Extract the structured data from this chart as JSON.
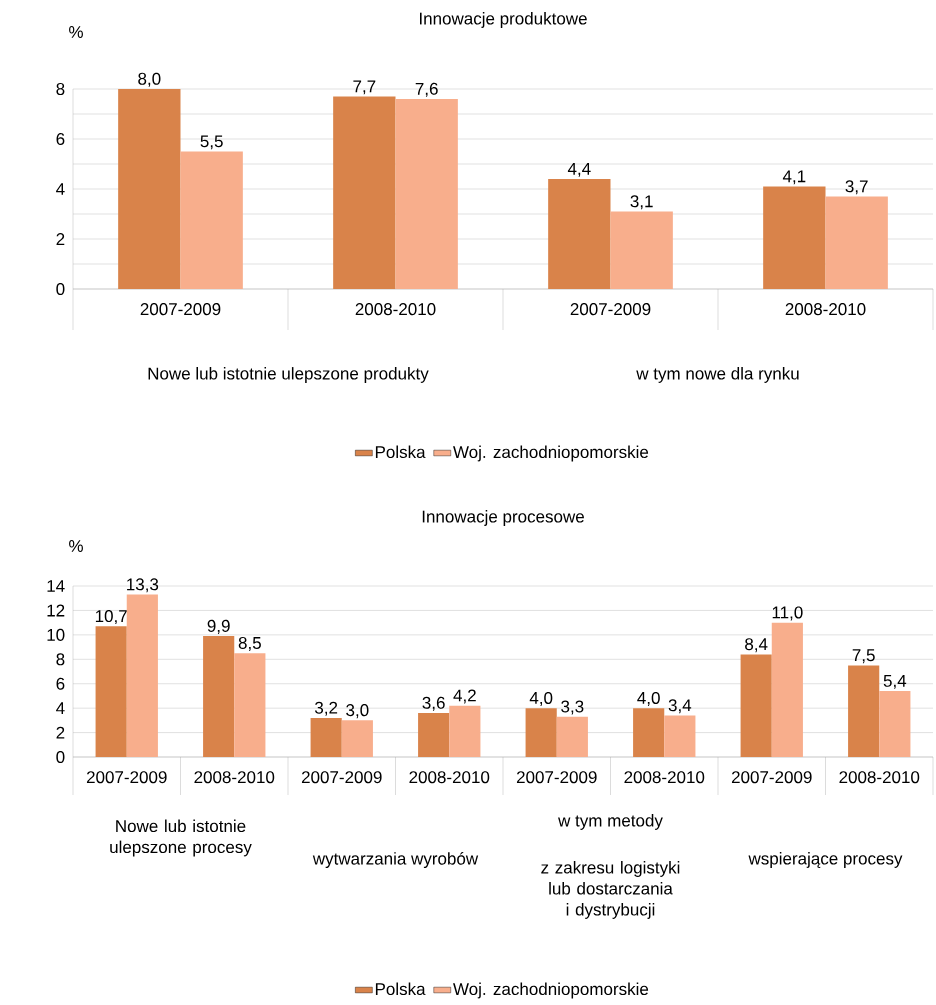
{
  "chart_data": [
    {
      "type": "bar",
      "title": "Innowacje produktowe",
      "ylabel": "%",
      "categories": [
        "2007-2009",
        "2008-2010",
        "2007-2009",
        "2008-2010"
      ],
      "series": [
        {
          "name": "Polska",
          "color": "#d9834a",
          "values": [
            8.0,
            7.7,
            4.4,
            4.1
          ],
          "value_labels": [
            "8,0",
            "7,7",
            "4,4",
            "4,1"
          ]
        },
        {
          "name": "Woj. zachodniopomorskie",
          "color": "#f8ae8c",
          "values": [
            5.5,
            7.6,
            3.1,
            3.7
          ],
          "value_labels": [
            "5,5",
            "7,6",
            "3,1",
            "3,7"
          ]
        }
      ],
      "ylim": [
        0,
        8
      ],
      "yticks": [
        0,
        {
          "value": 1,
          "label": null
        },
        2,
        {
          "value": 3,
          "label": null
        },
        4,
        {
          "value": 5,
          "label": null
        },
        6,
        {
          "value": 7,
          "label": null
        },
        8
      ],
      "grid": "y",
      "legend": "bottom",
      "annotations": [
        "Nowe lub istotnie ulepszone produkty",
        "w tym nowe dla rynku"
      ]
    },
    {
      "type": "bar",
      "title": "Innowacje procesowe",
      "ylabel": "%",
      "categories": [
        "2007-2009",
        "2008-2010",
        "2007-2009",
        "2008-2010",
        "2007-2009",
        "2008-2010",
        "2007-2009",
        "2008-2010"
      ],
      "series": [
        {
          "name": "Polska",
          "color": "#d9834a",
          "values": [
            10.7,
            9.9,
            3.2,
            3.6,
            4.0,
            4.0,
            8.4,
            7.5
          ],
          "value_labels": [
            "10,7",
            "9,9",
            "3,2",
            "3,6",
            "4,0",
            "4,0",
            "8,4",
            "7,5"
          ]
        },
        {
          "name": "Woj. zachodniopomorskie",
          "color": "#f8ae8c",
          "values": [
            13.3,
            8.5,
            3.0,
            4.2,
            3.3,
            3.4,
            11.0,
            5.4
          ],
          "value_labels": [
            "13,3",
            "8,5",
            "3,0",
            "4,2",
            "3,3",
            "3,4",
            "11,0",
            "5,4"
          ]
        }
      ],
      "ylim": [
        0,
        14
      ],
      "yticks": [
        0,
        2,
        4,
        6,
        8,
        10,
        12,
        14
      ],
      "grid": "y",
      "legend": "bottom",
      "annotations": [
        "Nowe lub istotnie ulepszone procesy",
        "w tym metody",
        "wytwarzania wyrobów",
        "z zakresu logistyki lub dostarczania i dystrybucji",
        "wspierające procesy"
      ]
    }
  ]
}
